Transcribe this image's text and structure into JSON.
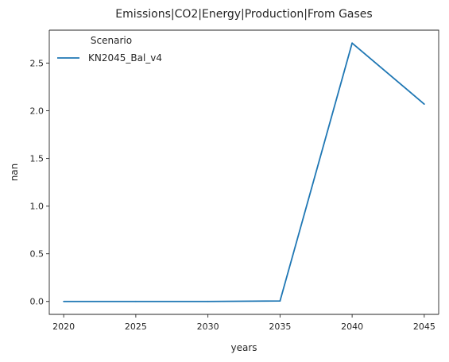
{
  "chart_data": {
    "type": "line",
    "title": "Emissions|CO2|Energy|Production|From Gases",
    "xlabel": "years",
    "ylabel": "nan",
    "x": [
      2020,
      2025,
      2030,
      2035,
      2040,
      2045
    ],
    "series": [
      {
        "name": "KN2045_Bal_v4",
        "values": [
          0.0,
          0.0,
          0.0,
          0.005,
          2.71,
          2.07
        ],
        "color": "#1f77b4"
      }
    ],
    "xticks": [
      2020,
      2025,
      2030,
      2035,
      2040,
      2045
    ],
    "yticks": [
      0.0,
      0.5,
      1.0,
      1.5,
      2.0,
      2.5
    ],
    "ytick_labels": [
      "0.0",
      "0.5",
      "1.0",
      "1.5",
      "2.0",
      "2.5"
    ],
    "xlim": [
      2019,
      2046
    ],
    "ylim": [
      -0.1355,
      2.8455
    ],
    "grid": false,
    "legend": {
      "title": "Scenario",
      "placement": "top-left"
    }
  }
}
